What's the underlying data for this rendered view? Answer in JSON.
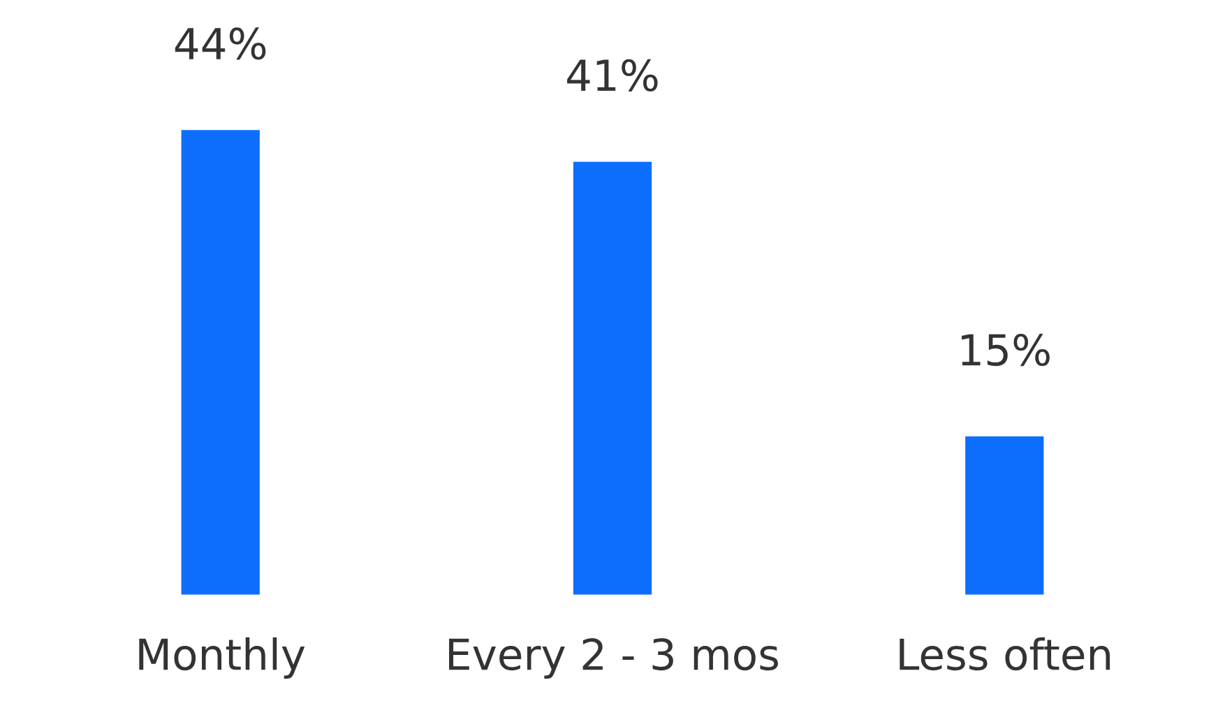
{
  "chart_data": {
    "type": "bar",
    "categories": [
      "Monthly",
      "Every 2 - 3 mos",
      "Less often"
    ],
    "values": [
      44,
      41,
      15
    ],
    "value_labels": [
      "44%",
      "41%",
      "15%"
    ],
    "color": "#0d6efd",
    "grid": false,
    "legend": false
  }
}
